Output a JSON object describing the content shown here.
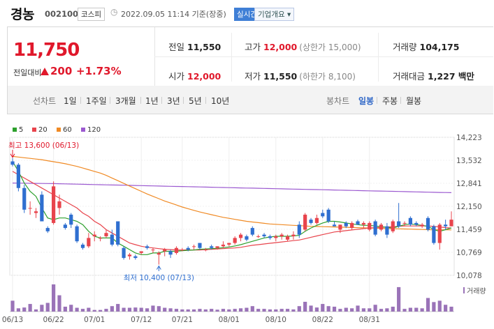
{
  "header": {
    "stock_name": "경농",
    "stock_code": "002100",
    "market": "코스피",
    "datetime": "2022.09.05 11:14 기준(장중)",
    "realtime_label": "실시간",
    "company_info_label": "기업개요"
  },
  "quote": {
    "price": "11,750",
    "prev_label": "전일대비",
    "change": "200",
    "change_pct": "+1.73%",
    "prev_close_label": "전일",
    "prev_close": "11,550",
    "high_label": "고가",
    "high": "12,000",
    "upper_limit": "(상한가 15,000)",
    "volume_label": "거래량",
    "volume": "104,175",
    "open_label": "시가",
    "open": "12,000",
    "low_label": "저가",
    "low": "11,550",
    "lower_limit": "(하한가 8,100)",
    "amount_label": "거래대금",
    "amount": "1,227 백만"
  },
  "toolbar": {
    "line_label": "선차트",
    "line_periods": [
      "1일",
      "1주일",
      "3개월",
      "1년",
      "3년",
      "5년",
      "10년"
    ],
    "candle_label": "봉차트",
    "candle_periods": [
      "일봉",
      "주봉",
      "월봉"
    ],
    "active_candle_period": "일봉"
  },
  "chart_data": {
    "type": "candlestick",
    "legend": [
      {
        "name": "5",
        "color": "#2ca02c"
      },
      {
        "name": "20",
        "color": "#e8444c"
      },
      {
        "name": "60",
        "color": "#f08a24"
      },
      {
        "name": "120",
        "color": "#9b59d0"
      }
    ],
    "y_ticks": [
      "14,223",
      "13,532",
      "12,841",
      "12,150",
      "11,459",
      "10,769",
      "10,078"
    ],
    "ylim": [
      10078,
      14223
    ],
    "x_ticks": [
      "06/13",
      "06/22",
      "07/01",
      "07/12",
      "07/21",
      "08/01",
      "08/10",
      "08/22",
      "08/31"
    ],
    "annotations": {
      "high": {
        "label": "최고 13,600 (06/13)",
        "date": "06/13",
        "value": 13600
      },
      "low": {
        "label": "최저 10,400 (07/13)",
        "date": "07/13",
        "value": 10400
      }
    },
    "volume_label": "거래량",
    "up_color": "#e8444c",
    "down_color": "#2f6fd0",
    "candles": [
      {
        "o": 13500,
        "h": 13600,
        "l": 13350,
        "c": 13400
      },
      {
        "o": 13400,
        "h": 13450,
        "l": 12600,
        "c": 12700
      },
      {
        "o": 12700,
        "h": 12800,
        "l": 11950,
        "c": 12050
      },
      {
        "o": 12100,
        "h": 12300,
        "l": 11900,
        "c": 12100
      },
      {
        "o": 11950,
        "h": 12100,
        "l": 11800,
        "c": 12000
      },
      {
        "o": 12500,
        "h": 12600,
        "l": 11700,
        "c": 11700
      },
      {
        "o": 11500,
        "h": 11550,
        "l": 11350,
        "c": 11400
      },
      {
        "o": 11650,
        "h": 12900,
        "l": 11600,
        "c": 12750
      },
      {
        "o": 12100,
        "h": 12500,
        "l": 11900,
        "c": 12300
      },
      {
        "o": 11600,
        "h": 11650,
        "l": 11450,
        "c": 11500
      },
      {
        "o": 11900,
        "h": 11950,
        "l": 11500,
        "c": 11600
      },
      {
        "o": 11550,
        "h": 11600,
        "l": 11050,
        "c": 11100
      },
      {
        "o": 11000,
        "h": 11050,
        "l": 10850,
        "c": 10900
      },
      {
        "o": 10950,
        "h": 11350,
        "l": 10900,
        "c": 11200
      },
      {
        "o": 11250,
        "h": 11400,
        "l": 11100,
        "c": 11300
      },
      {
        "o": 11200,
        "h": 11250,
        "l": 11100,
        "c": 11200
      },
      {
        "o": 11250,
        "h": 11450,
        "l": 11200,
        "c": 11350
      },
      {
        "o": 11300,
        "h": 11450,
        "l": 10950,
        "c": 11000
      },
      {
        "o": 11700,
        "h": 11700,
        "l": 10950,
        "c": 11000
      },
      {
        "o": 10900,
        "h": 10950,
        "l": 10550,
        "c": 10600
      },
      {
        "o": 10650,
        "h": 10750,
        "l": 10550,
        "c": 10700
      },
      {
        "o": 10650,
        "h": 10700,
        "l": 10550,
        "c": 10600
      },
      {
        "o": 10750,
        "h": 10800,
        "l": 10700,
        "c": 10800
      },
      {
        "o": 10950,
        "h": 11000,
        "l": 10850,
        "c": 10900
      },
      {
        "o": 10850,
        "h": 10900,
        "l": 10750,
        "c": 10850
      },
      {
        "o": 10700,
        "h": 10800,
        "l": 10400,
        "c": 10750
      },
      {
        "o": 10800,
        "h": 10900,
        "l": 10650,
        "c": 10850
      },
      {
        "o": 10800,
        "h": 10850,
        "l": 10600,
        "c": 10700
      },
      {
        "o": 10750,
        "h": 10950,
        "l": 10700,
        "c": 10900
      },
      {
        "o": 10850,
        "h": 10900,
        "l": 10800,
        "c": 10850
      },
      {
        "o": 10900,
        "h": 10950,
        "l": 10800,
        "c": 10850
      },
      {
        "o": 10950,
        "h": 11000,
        "l": 10850,
        "c": 10950
      },
      {
        "o": 11050,
        "h": 11050,
        "l": 10850,
        "c": 10900
      },
      {
        "o": 10850,
        "h": 10900,
        "l": 10800,
        "c": 10850
      },
      {
        "o": 10950,
        "h": 11000,
        "l": 10850,
        "c": 10900
      },
      {
        "o": 10900,
        "h": 10950,
        "l": 10850,
        "c": 10950
      },
      {
        "o": 10950,
        "h": 11100,
        "l": 10900,
        "c": 11000
      },
      {
        "o": 11000,
        "h": 11050,
        "l": 10950,
        "c": 11050
      },
      {
        "o": 11050,
        "h": 11250,
        "l": 11000,
        "c": 11200
      },
      {
        "o": 11200,
        "h": 11350,
        "l": 11100,
        "c": 11300
      },
      {
        "o": 11250,
        "h": 11300,
        "l": 11100,
        "c": 11150
      },
      {
        "o": 11500,
        "h": 11550,
        "l": 11250,
        "c": 11300
      },
      {
        "o": 11250,
        "h": 11300,
        "l": 11200,
        "c": 11250
      },
      {
        "o": 11300,
        "h": 11350,
        "l": 11200,
        "c": 11250
      },
      {
        "o": 11250,
        "h": 11300,
        "l": 11150,
        "c": 11200
      },
      {
        "o": 11200,
        "h": 11300,
        "l": 11100,
        "c": 11250
      },
      {
        "o": 11250,
        "h": 11350,
        "l": 11150,
        "c": 11300
      },
      {
        "o": 11150,
        "h": 11300,
        "l": 11100,
        "c": 11250
      },
      {
        "o": 11250,
        "h": 11400,
        "l": 11150,
        "c": 11300
      },
      {
        "o": 11600,
        "h": 11700,
        "l": 11200,
        "c": 11300
      },
      {
        "o": 11450,
        "h": 11950,
        "l": 11400,
        "c": 11900
      },
      {
        "o": 11750,
        "h": 11800,
        "l": 11600,
        "c": 11650
      },
      {
        "o": 11650,
        "h": 11900,
        "l": 11600,
        "c": 11800
      },
      {
        "o": 11950,
        "h": 12050,
        "l": 11800,
        "c": 11850
      },
      {
        "o": 12050,
        "h": 12100,
        "l": 11650,
        "c": 11700
      },
      {
        "o": 11600,
        "h": 11700,
        "l": 11550,
        "c": 11550
      },
      {
        "o": 11450,
        "h": 11600,
        "l": 11350,
        "c": 11600
      },
      {
        "o": 11650,
        "h": 11700,
        "l": 11500,
        "c": 11550
      },
      {
        "o": 11500,
        "h": 11700,
        "l": 11450,
        "c": 11650
      },
      {
        "o": 11700,
        "h": 11750,
        "l": 11600,
        "c": 11600
      },
      {
        "o": 11600,
        "h": 11700,
        "l": 11500,
        "c": 11650
      },
      {
        "o": 11450,
        "h": 11700,
        "l": 11400,
        "c": 11650
      },
      {
        "o": 11700,
        "h": 11750,
        "l": 11250,
        "c": 11300
      },
      {
        "o": 11450,
        "h": 11650,
        "l": 11400,
        "c": 11600
      },
      {
        "o": 11550,
        "h": 11650,
        "l": 11200,
        "c": 11300
      },
      {
        "o": 11400,
        "h": 11750,
        "l": 11350,
        "c": 11700
      },
      {
        "o": 11700,
        "h": 12250,
        "l": 11500,
        "c": 11550
      },
      {
        "o": 11650,
        "h": 11700,
        "l": 11550,
        "c": 11650
      },
      {
        "o": 11800,
        "h": 11850,
        "l": 11550,
        "c": 11600
      },
      {
        "o": 11650,
        "h": 11700,
        "l": 11550,
        "c": 11600
      },
      {
        "o": 11550,
        "h": 11650,
        "l": 11500,
        "c": 11600
      },
      {
        "o": 11800,
        "h": 11850,
        "l": 11400,
        "c": 11450
      },
      {
        "o": 11550,
        "h": 11600,
        "l": 11000,
        "c": 11050
      },
      {
        "o": 11050,
        "h": 11650,
        "l": 10850,
        "c": 11600
      },
      {
        "o": 11600,
        "h": 11750,
        "l": 11450,
        "c": 11550
      },
      {
        "o": 11550,
        "h": 12000,
        "l": 11550,
        "c": 11750
      }
    ],
    "volume": [
      40,
      12,
      15,
      28,
      8,
      25,
      32,
      100,
      60,
      18,
      25,
      14,
      10,
      14,
      6,
      6,
      10,
      20,
      28,
      14,
      14,
      15,
      14,
      12,
      22,
      20,
      14,
      12,
      10,
      8,
      8,
      8,
      10,
      8,
      10,
      7,
      10,
      8,
      10,
      12,
      14,
      20,
      10,
      10,
      8,
      8,
      10,
      10,
      8,
      20,
      36,
      22,
      15,
      28,
      20,
      18,
      10,
      14,
      12,
      22,
      12,
      12,
      25,
      10,
      12,
      18,
      90,
      10,
      14,
      14,
      12,
      50,
      35,
      40,
      25,
      18
    ],
    "ma5": [
      13500,
      13200,
      12850,
      12600,
      12450,
      12100,
      11800,
      11750,
      11800,
      11800,
      11750,
      11700,
      11600,
      11400,
      11250,
      11200,
      11200,
      11200,
      11050,
      10950,
      10850,
      10750,
      10700,
      10700,
      10750,
      10750,
      10800,
      10800,
      10800,
      10820,
      10830,
      10840,
      10860,
      10870,
      10880,
      10890,
      10910,
      10930,
      10960,
      11000,
      11050,
      11100,
      11150,
      11200,
      11230,
      11250,
      11250,
      11250,
      11260,
      11280,
      11400,
      11500,
      11580,
      11650,
      11700,
      11700,
      11680,
      11650,
      11620,
      11600,
      11580,
      11580,
      11560,
      11540,
      11520,
      11500,
      11550,
      11600,
      11620,
      11600,
      11580,
      11550,
      11450,
      11400,
      11450,
      11500
    ],
    "ma20": [
      13200,
      13100,
      13000,
      12900,
      12800,
      12700,
      12600,
      12500,
      12400,
      12300,
      12200,
      12100,
      11950,
      11850,
      11700,
      11600,
      11450,
      11350,
      11250,
      11150,
      11050,
      11000,
      10950,
      10920,
      10900,
      10880,
      10860,
      10850,
      10840,
      10840,
      10840,
      10840,
      10840,
      10850,
      10860,
      10870,
      10880,
      10890,
      10900,
      10920,
      10950,
      10980,
      11000,
      11020,
      11040,
      11060,
      11080,
      11100,
      11120,
      11140,
      11180,
      11220,
      11260,
      11300,
      11340,
      11380,
      11400,
      11420,
      11440,
      11460,
      11480,
      11500,
      11510,
      11520,
      11530,
      11540,
      11550,
      11560,
      11560,
      11560,
      11560,
      11560,
      11550,
      11530,
      11510,
      11500
    ],
    "ma60": [
      13650,
      13630,
      13610,
      13590,
      13570,
      13550,
      13520,
      13490,
      13460,
      13430,
      13390,
      13350,
      13300,
      13250,
      13200,
      13150,
      13080,
      13000,
      12920,
      12840,
      12760,
      12680,
      12600,
      12520,
      12450,
      12380,
      12310,
      12250,
      12190,
      12130,
      12080,
      12030,
      11980,
      11940,
      11900,
      11860,
      11820,
      11790,
      11760,
      11730,
      11700,
      11680,
      11660,
      11640,
      11620,
      11610,
      11600,
      11590,
      11580,
      11570,
      11560,
      11550,
      11545,
      11540,
      11535,
      11530,
      11525,
      11520,
      11515,
      11510,
      11505,
      11500,
      11495,
      11490,
      11485,
      11480,
      11475,
      11470,
      11465,
      11460,
      11455,
      11450,
      11448,
      11446,
      11444,
      11442
    ],
    "ma120": [
      12850,
      12848,
      12845,
      12842,
      12840,
      12838,
      12835,
      12832,
      12828,
      12824,
      12820,
      12816,
      12812,
      12808,
      12804,
      12800,
      12796,
      12792,
      12788,
      12784,
      12780,
      12776,
      12772,
      12768,
      12764,
      12760,
      12756,
      12752,
      12748,
      12744,
      12740,
      12736,
      12732,
      12728,
      12724,
      12720,
      12716,
      12712,
      12708,
      12704,
      12700,
      12696,
      12692,
      12688,
      12684,
      12680,
      12676,
      12672,
      12668,
      12664,
      12660,
      12656,
      12652,
      12648,
      12644,
      12640,
      12636,
      12632,
      12628,
      12624,
      12620,
      12616,
      12612,
      12608,
      12604,
      12600,
      12596,
      12592,
      12588,
      12584,
      12580,
      12576,
      12572,
      12568,
      12564,
      12560
    ]
  }
}
